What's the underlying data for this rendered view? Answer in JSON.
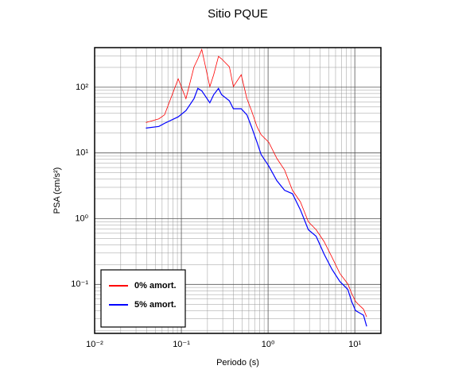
{
  "chart_data": {
    "type": "line",
    "title": "Sitio PQUE",
    "xlabel": "Periodo (s)",
    "ylabel": "PSA (cm/s²)",
    "xscale": "log",
    "yscale": "log",
    "grid": true,
    "legend": "lower left",
    "xlim": [
      0.01,
      20
    ],
    "ylim": [
      0.018,
      400
    ],
    "xticks": [
      {
        "value": 0.01,
        "label": "10⁻²"
      },
      {
        "value": 0.1,
        "label": "10⁻¹"
      },
      {
        "value": 1,
        "label": "10⁰"
      },
      {
        "value": 10,
        "label": "10¹"
      }
    ],
    "yticks": [
      {
        "value": 0.1,
        "label": "10⁻¹"
      },
      {
        "value": 1,
        "label": "10⁰"
      },
      {
        "value": 10,
        "label": "10¹"
      },
      {
        "value": 100,
        "label": "10²"
      }
    ],
    "x_minor_ticks": [
      0.02,
      0.03,
      0.04,
      0.05,
      0.06,
      0.07,
      0.08,
      0.09,
      0.2,
      0.3,
      0.4,
      0.5,
      0.6,
      0.7,
      0.8,
      0.9,
      2,
      3,
      4,
      5,
      6,
      7,
      8,
      9,
      20
    ],
    "y_minor_ticks": [
      0.02,
      0.03,
      0.04,
      0.05,
      0.06,
      0.07,
      0.08,
      0.09,
      0.2,
      0.3,
      0.4,
      0.5,
      0.6,
      0.7,
      0.8,
      0.9,
      2,
      3,
      4,
      5,
      6,
      7,
      8,
      9,
      20,
      30,
      40,
      50,
      60,
      70,
      80,
      90,
      200,
      300,
      400
    ],
    "x": [
      0.039,
      0.055,
      0.064,
      0.092,
      0.113,
      0.14,
      0.155,
      0.172,
      0.213,
      0.236,
      0.268,
      0.291,
      0.358,
      0.398,
      0.49,
      0.57,
      0.644,
      0.746,
      0.83,
      1.02,
      1.26,
      1.55,
      1.91,
      2.36,
      2.91,
      3.58,
      4.42,
      5.45,
      6.72,
      8.3,
      9.2,
      10.2,
      11.3,
      12.6,
      13.7
    ],
    "series": [
      {
        "name": "0% amort.",
        "color": "#ff0000",
        "values": [
          29,
          33,
          38,
          134,
          67,
          204,
          270,
          375,
          102,
          155,
          294,
          270,
          204,
          102,
          155,
          67,
          44,
          25,
          19,
          14.5,
          8.3,
          5.5,
          2.7,
          1.8,
          0.9,
          0.68,
          0.45,
          0.26,
          0.147,
          0.102,
          0.073,
          0.055,
          0.048,
          0.042,
          0.032
        ]
      },
      {
        "name": "5% amort.",
        "color": "#0000ff",
        "values": [
          23.9,
          25.3,
          28.2,
          35.4,
          44,
          67,
          96,
          88,
          58,
          77,
          96,
          77,
          62,
          47,
          47,
          38,
          25,
          14.5,
          9.5,
          6.3,
          3.8,
          2.7,
          2.4,
          1.36,
          0.68,
          0.54,
          0.29,
          0.17,
          0.111,
          0.084,
          0.055,
          0.04,
          0.037,
          0.034,
          0.023
        ]
      }
    ]
  }
}
